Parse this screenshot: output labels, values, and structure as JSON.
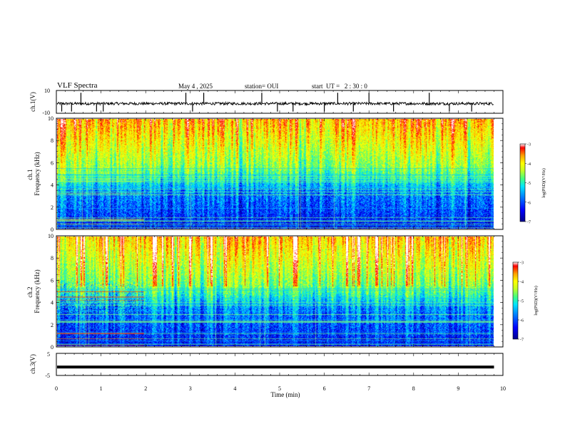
{
  "header": {
    "title": "VLF Spectra",
    "date": "May 4 , 2025",
    "station": "station= OUI",
    "start_ut": "start  UT =   2 : 30 : 0"
  },
  "colors": {
    "spectrogram_colormap": [
      "#00008b",
      "#0000ff",
      "#0080ff",
      "#00e5ff",
      "#40ff80",
      "#c8ff20",
      "#ffff00",
      "#ffa000",
      "#ff0000",
      "#ffffff"
    ],
    "waveform": "#000000"
  },
  "chart_data": [
    {
      "type": "line",
      "name": "ch1-waveform",
      "ylabel": "ch.1(V)",
      "ylim": [
        -10,
        10
      ],
      "y_ticks": [
        "10",
        "-10"
      ],
      "x_range": [
        0,
        10
      ],
      "data_extent_min": 9.8,
      "baseline_v": -1.5,
      "spikes_min": [
        0.12,
        0.34,
        0.55,
        0.9,
        1.05,
        2.9,
        3.05,
        3.3,
        4.6,
        4.95,
        5.3,
        6.0,
        6.3,
        6.65,
        7.0,
        7.55,
        8.35,
        8.8,
        9.3
      ]
    },
    {
      "type": "heatmap",
      "name": "ch1-spectrogram",
      "ylabel": "ch.1\nFrequency (kHz)",
      "y_ticks": [
        "0",
        "2",
        "4",
        "6",
        "8",
        "10"
      ],
      "ylim": [
        0,
        10
      ],
      "x_range": [
        0,
        10
      ],
      "data_extent_min": 9.8,
      "colorbar": {
        "label": "log(PSD)(V²/Hz)",
        "ticks": [
          "-3",
          "-4",
          "-5",
          "-6",
          "-7"
        ],
        "range": [
          -7,
          -3
        ]
      }
    },
    {
      "type": "heatmap",
      "name": "ch2-spectrogram",
      "ylabel": "ch.2\nFrequency (kHz)",
      "y_ticks": [
        "0",
        "2",
        "4",
        "6",
        "8",
        "10"
      ],
      "ylim": [
        0,
        10
      ],
      "x_range": [
        0,
        10
      ],
      "data_extent_min": 9.8,
      "colorbar": {
        "label": "log(PSD)(V²/Hz)",
        "ticks": [
          "-3",
          "-4",
          "-5",
          "-6",
          "-7"
        ],
        "range": [
          -7,
          -3
        ]
      }
    },
    {
      "type": "line",
      "name": "ch3-waveform",
      "ylabel": "ch.3(V)",
      "ylim": [
        -5,
        5
      ],
      "y_ticks": [
        "5",
        "-5"
      ],
      "x_range": [
        0,
        10
      ],
      "data_extent_min": 9.8,
      "baseline_v": -1.2
    }
  ],
  "x_axis": {
    "label": "Time (min)",
    "ticks": [
      "0",
      "1",
      "2",
      "3",
      "4",
      "5",
      "6",
      "7",
      "8",
      "9",
      "10"
    ]
  }
}
